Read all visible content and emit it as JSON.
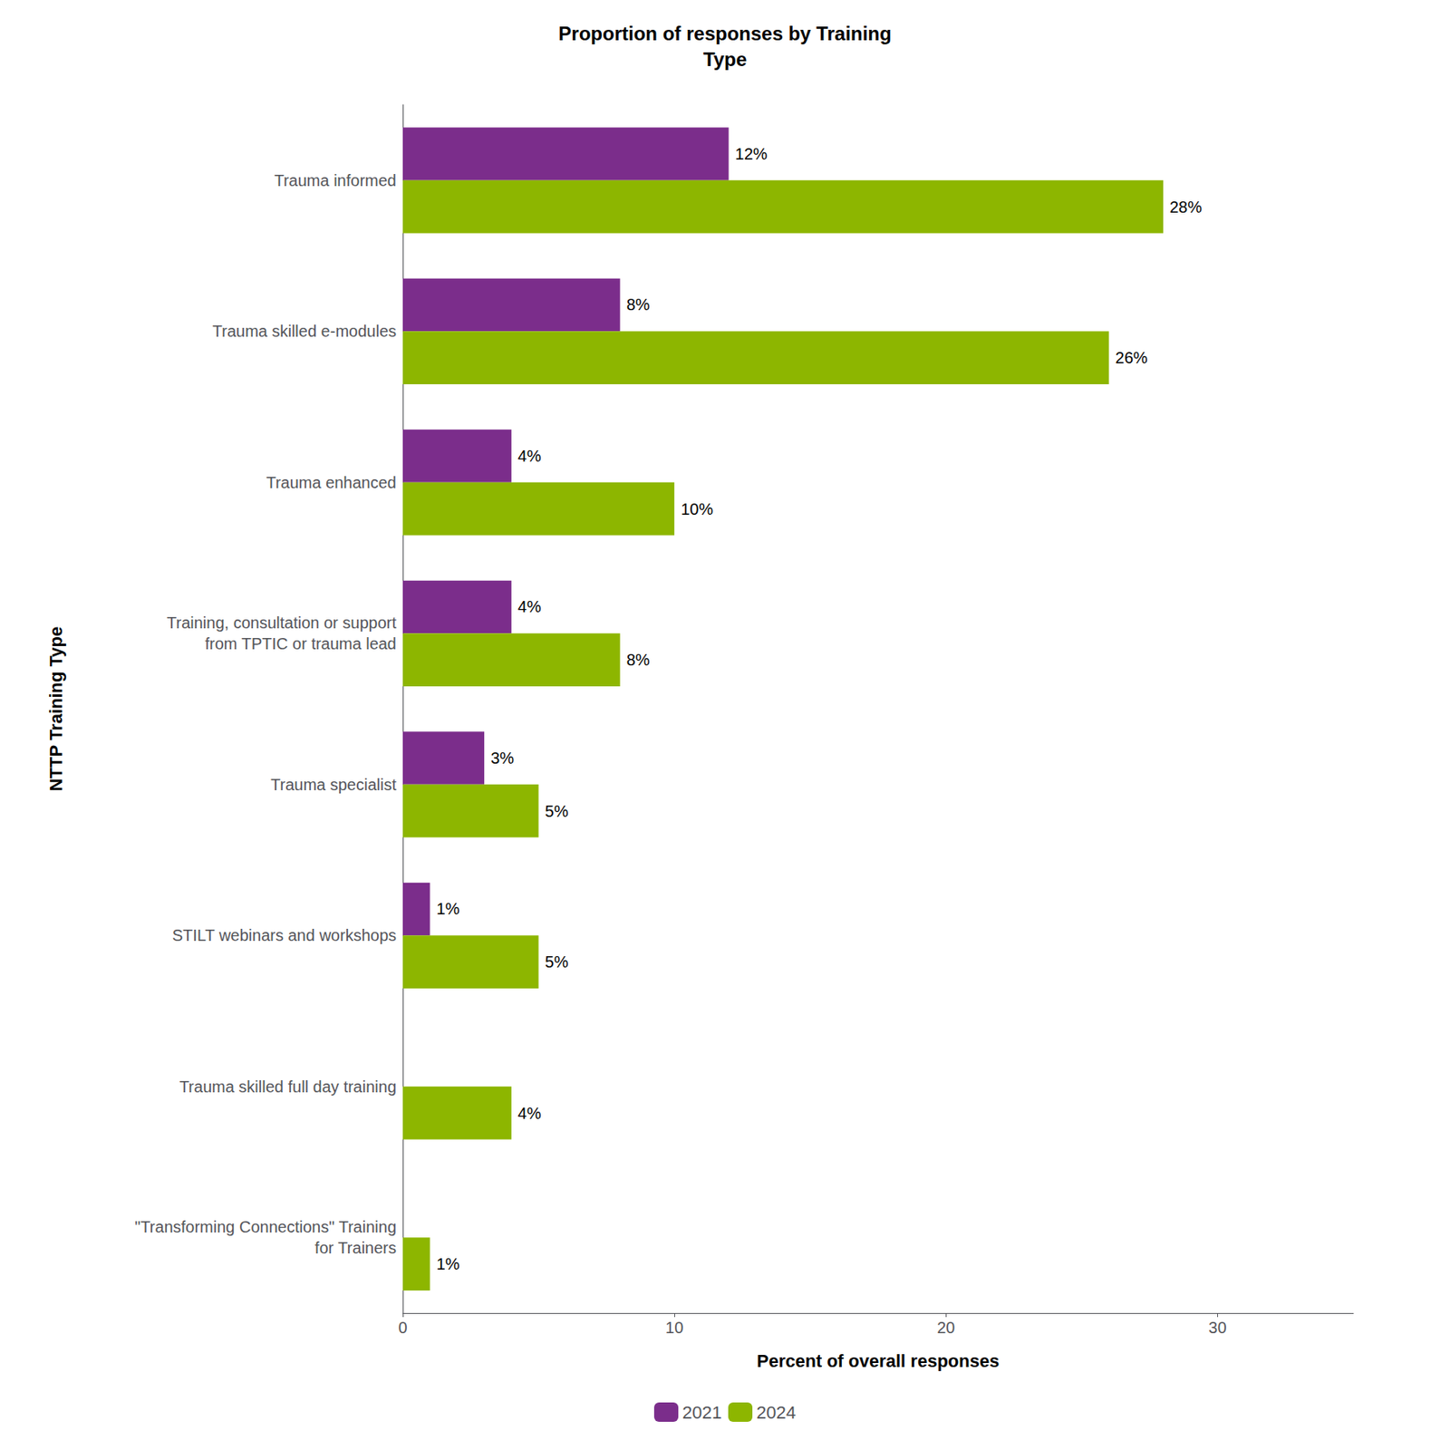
{
  "chart_data": {
    "type": "bar",
    "orientation": "horizontal",
    "title": "Proportion of responses by Training\nType",
    "xlabel": "Percent of overall responses",
    "ylabel": "NTTP Training Type",
    "categories": [
      "Trauma informed",
      "Trauma skilled e-modules",
      "Trauma enhanced",
      "Training, consultation or support\nfrom TPTIC or trauma lead",
      "Trauma specialist",
      "STILT webinars and workshops",
      "Trauma skilled full day training",
      "\"Transforming Connections\" Training\nfor Trainers"
    ],
    "series": [
      {
        "name": "2021",
        "color": "#7B2D8B",
        "values": [
          12,
          8,
          4,
          4,
          3,
          1,
          0,
          0
        ],
        "value_labels": [
          "12%",
          "8%",
          "4%",
          "4%",
          "3%",
          "1%",
          null,
          null
        ]
      },
      {
        "name": "2024",
        "color": "#8DB600",
        "values": [
          28,
          26,
          10,
          8,
          5,
          5,
          4,
          1
        ],
        "value_labels": [
          "28%",
          "26%",
          "10%",
          "8%",
          "5%",
          "5%",
          "4%",
          "1%"
        ]
      }
    ],
    "xlim": [
      0,
      35
    ],
    "xticks": [
      0,
      10,
      20,
      30
    ],
    "data_labels": true,
    "grid": false,
    "legend": "bottom"
  }
}
